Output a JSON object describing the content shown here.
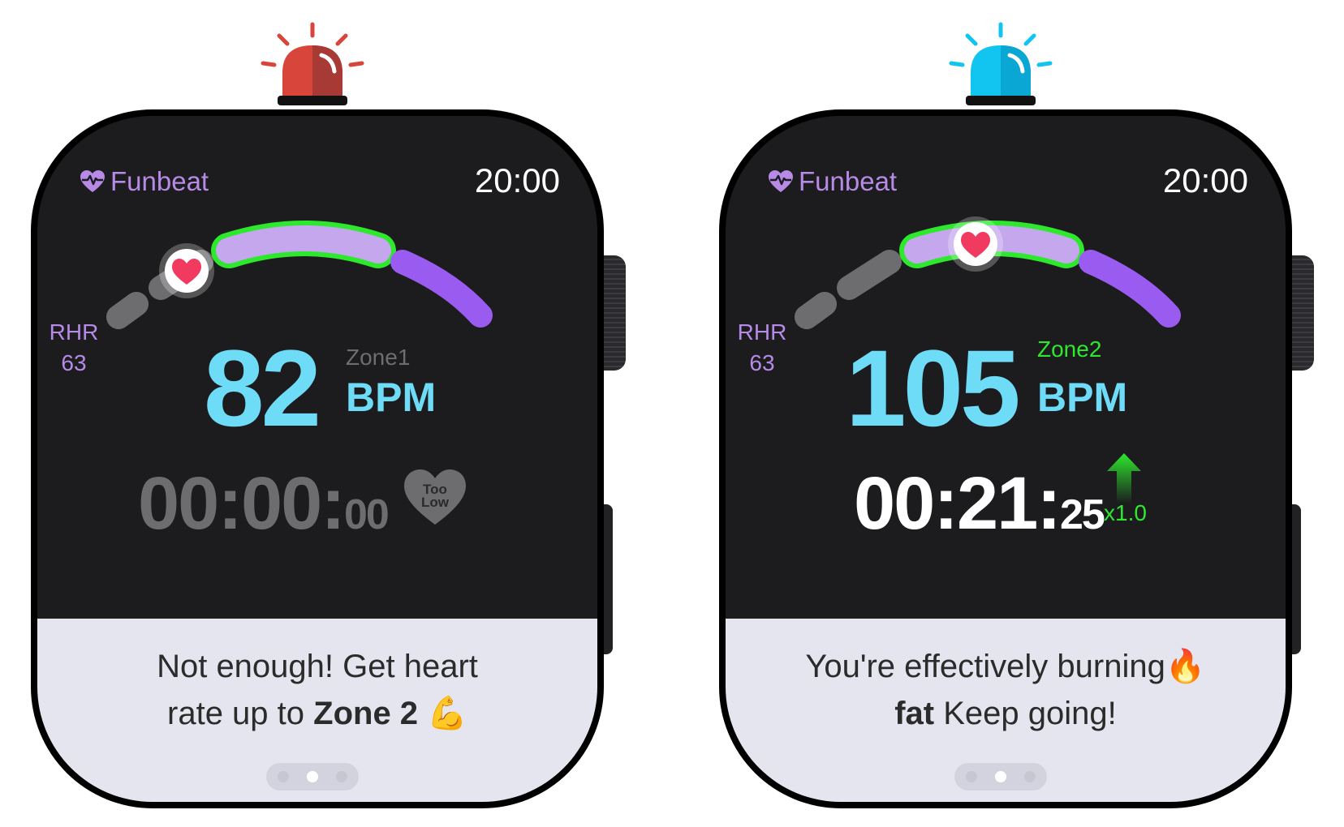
{
  "colors": {
    "brand": "#b68ae6",
    "bpm": "#6fdcf7",
    "zone_active": "#2ee82e",
    "zone_inactive": "#6d6d70",
    "zone2_fill": "#c4a7ec",
    "zone3_fill": "#9a5cf0",
    "siren_red": "#d8453a",
    "siren_blue": "#12c4f0"
  },
  "watches": [
    {
      "siren_color": "red",
      "brand_name": "Funbeat",
      "brand_icon": "heart-pulse-icon",
      "time": "20:00",
      "rhr_label": "RHR",
      "rhr_value": "63",
      "bpm_value": "82",
      "bpm_unit": "BPM",
      "zone_label": "Zone1",
      "timer_main": "00:00:",
      "timer_small": "00",
      "status_badge": "Too Low",
      "message_line1": "Not enough! Get heart",
      "message_pre": "rate up to ",
      "message_bold": "Zone 2",
      "message_post": " 💪",
      "pages": 3,
      "active_page": 2
    },
    {
      "siren_color": "blue",
      "brand_name": "Funbeat",
      "brand_icon": "heart-pulse-icon",
      "time": "20:00",
      "rhr_label": "RHR",
      "rhr_value": "63",
      "bpm_value": "105",
      "bpm_unit": "BPM",
      "zone_label": "Zone2",
      "timer_main": "00:21:",
      "timer_small": "25",
      "multiplier": "x1.0",
      "message_line1": "You're effectively burning🔥",
      "message_bold": "fat",
      "message_post": " Keep going!",
      "pages": 3,
      "active_page": 2
    }
  ]
}
